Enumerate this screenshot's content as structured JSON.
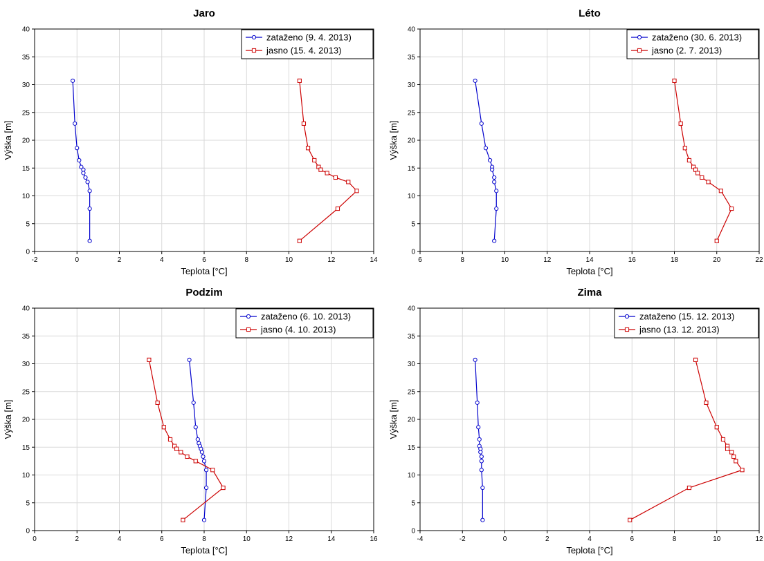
{
  "chart_data": [
    {
      "type": "line",
      "title": "Jaro",
      "xlabel": "Teplota [°C]",
      "ylabel": "Výška [m]",
      "xlim": [
        -2,
        14
      ],
      "ylim": [
        0,
        40
      ],
      "xticks": [
        -2,
        0,
        2,
        4,
        6,
        8,
        10,
        12,
        14
      ],
      "yticks": [
        0,
        5,
        10,
        15,
        20,
        25,
        30,
        35,
        40
      ],
      "grid": true,
      "legend": "top-right",
      "series": [
        {
          "name": "zataženo (9. 4. 2013)",
          "color": "#0000cc",
          "marker": "circle",
          "points": [
            [
              -0.2,
              30.7
            ],
            [
              -0.1,
              23.0
            ],
            [
              0.0,
              18.6
            ],
            [
              0.1,
              16.4
            ],
            [
              0.2,
              15.2
            ],
            [
              0.3,
              14.7
            ],
            [
              0.3,
              14.1
            ],
            [
              0.4,
              13.3
            ],
            [
              0.5,
              12.5
            ],
            [
              0.6,
              10.9
            ],
            [
              0.6,
              7.7
            ],
            [
              0.6,
              1.9
            ]
          ]
        },
        {
          "name": "jasno (15. 4. 2013)",
          "color": "#cc0000",
          "marker": "square",
          "points": [
            [
              10.5,
              30.7
            ],
            [
              10.7,
              23.0
            ],
            [
              10.9,
              18.6
            ],
            [
              11.2,
              16.4
            ],
            [
              11.4,
              15.2
            ],
            [
              11.5,
              14.7
            ],
            [
              11.8,
              14.1
            ],
            [
              12.2,
              13.3
            ],
            [
              12.8,
              12.5
            ],
            [
              13.2,
              10.9
            ],
            [
              12.3,
              7.7
            ],
            [
              10.5,
              1.9
            ]
          ]
        }
      ]
    },
    {
      "type": "line",
      "title": "Léto",
      "xlabel": "Teplota [°C]",
      "ylabel": "Výška [m]",
      "xlim": [
        6,
        22
      ],
      "ylim": [
        0,
        40
      ],
      "xticks": [
        6,
        8,
        10,
        12,
        14,
        16,
        18,
        20,
        22
      ],
      "yticks": [
        0,
        5,
        10,
        15,
        20,
        25,
        30,
        35,
        40
      ],
      "grid": true,
      "legend": "top-right",
      "series": [
        {
          "name": "zataženo (30. 6. 2013)",
          "color": "#0000cc",
          "marker": "circle",
          "points": [
            [
              8.6,
              30.7
            ],
            [
              8.9,
              23.0
            ],
            [
              9.1,
              18.6
            ],
            [
              9.3,
              16.4
            ],
            [
              9.4,
              15.2
            ],
            [
              9.4,
              14.7
            ],
            [
              9.5,
              13.3
            ],
            [
              9.5,
              12.5
            ],
            [
              9.6,
              10.9
            ],
            [
              9.6,
              7.7
            ],
            [
              9.5,
              1.9
            ]
          ]
        },
        {
          "name": "jasno (2. 7. 2013)",
          "color": "#cc0000",
          "marker": "square",
          "points": [
            [
              18.0,
              30.7
            ],
            [
              18.3,
              23.0
            ],
            [
              18.5,
              18.6
            ],
            [
              18.7,
              16.4
            ],
            [
              18.9,
              15.2
            ],
            [
              19.0,
              14.7
            ],
            [
              19.1,
              14.1
            ],
            [
              19.3,
              13.3
            ],
            [
              19.6,
              12.5
            ],
            [
              20.2,
              10.9
            ],
            [
              20.7,
              7.7
            ],
            [
              20.0,
              1.9
            ]
          ]
        }
      ]
    },
    {
      "type": "line",
      "title": "Podzim",
      "xlabel": "Teplota [°C]",
      "ylabel": "Výška [m]",
      "xlim": [
        0,
        16
      ],
      "ylim": [
        0,
        40
      ],
      "xticks": [
        0,
        2,
        4,
        6,
        8,
        10,
        12,
        14,
        16
      ],
      "yticks": [
        0,
        5,
        10,
        15,
        20,
        25,
        30,
        35,
        40
      ],
      "grid": true,
      "legend": "top-right",
      "series": [
        {
          "name": "zataženo (6. 10. 2013)",
          "color": "#0000cc",
          "marker": "circle",
          "points": [
            [
              7.3,
              30.7
            ],
            [
              7.5,
              23.0
            ],
            [
              7.6,
              18.6
            ],
            [
              7.7,
              16.4
            ],
            [
              7.75,
              15.7
            ],
            [
              7.8,
              15.2
            ],
            [
              7.85,
              14.7
            ],
            [
              7.9,
              14.1
            ],
            [
              7.95,
              13.3
            ],
            [
              8.0,
              12.5
            ],
            [
              8.1,
              10.9
            ],
            [
              8.1,
              7.7
            ],
            [
              8.0,
              1.9
            ]
          ]
        },
        {
          "name": "jasno (4. 10. 2013)",
          "color": "#cc0000",
          "marker": "square",
          "points": [
            [
              5.4,
              30.7
            ],
            [
              5.8,
              23.0
            ],
            [
              6.1,
              18.6
            ],
            [
              6.4,
              16.4
            ],
            [
              6.6,
              15.2
            ],
            [
              6.7,
              14.7
            ],
            [
              6.9,
              14.1
            ],
            [
              7.2,
              13.3
            ],
            [
              7.6,
              12.5
            ],
            [
              8.4,
              10.9
            ],
            [
              8.9,
              7.7
            ],
            [
              7.0,
              1.9
            ]
          ]
        }
      ]
    },
    {
      "type": "line",
      "title": "Zima",
      "xlabel": "Teplota [°C]",
      "ylabel": "Výška [m]",
      "xlim": [
        -4,
        12
      ],
      "ylim": [
        0,
        40
      ],
      "xticks": [
        -4,
        -2,
        0,
        2,
        4,
        6,
        8,
        10,
        12
      ],
      "yticks": [
        0,
        5,
        10,
        15,
        20,
        25,
        30,
        35,
        40
      ],
      "grid": true,
      "legend": "top-right",
      "series": [
        {
          "name": "zataženo (15. 12. 2013)",
          "color": "#0000cc",
          "marker": "circle",
          "points": [
            [
              -1.4,
              30.7
            ],
            [
              -1.3,
              23.0
            ],
            [
              -1.25,
              18.6
            ],
            [
              -1.2,
              16.4
            ],
            [
              -1.2,
              15.2
            ],
            [
              -1.15,
              14.7
            ],
            [
              -1.15,
              14.1
            ],
            [
              -1.1,
              13.3
            ],
            [
              -1.1,
              12.5
            ],
            [
              -1.1,
              10.9
            ],
            [
              -1.05,
              7.7
            ],
            [
              -1.05,
              1.9
            ]
          ]
        },
        {
          "name": "jasno (13. 12. 2013)",
          "color": "#cc0000",
          "marker": "square",
          "points": [
            [
              9.0,
              30.7
            ],
            [
              9.5,
              23.0
            ],
            [
              10.0,
              18.6
            ],
            [
              10.3,
              16.4
            ],
            [
              10.5,
              15.2
            ],
            [
              10.5,
              14.7
            ],
            [
              10.7,
              14.1
            ],
            [
              10.8,
              13.3
            ],
            [
              10.9,
              12.5
            ],
            [
              11.2,
              10.9
            ],
            [
              8.7,
              7.7
            ],
            [
              5.9,
              1.9
            ]
          ]
        }
      ]
    }
  ]
}
